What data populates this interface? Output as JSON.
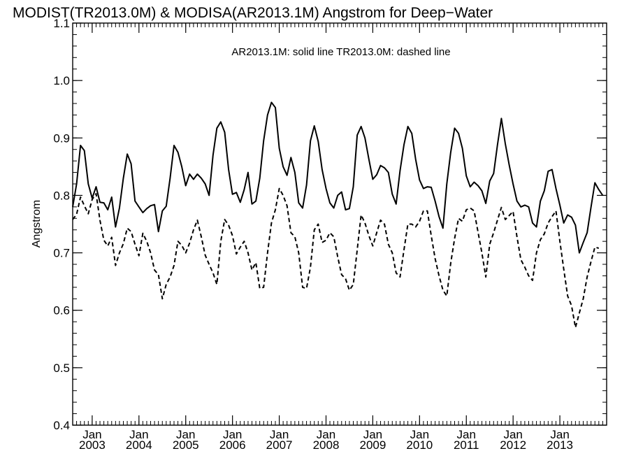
{
  "chart_data": {
    "type": "line",
    "title": "MODIST(TR2013.0M) & MODISA(AR2013.1M)  Angstrom for Deep−Water",
    "annotation": "AR2013.1M: solid line   TR2013.0M: dashed line",
    "xlabel": "",
    "ylabel": "Angstrom",
    "ylim": [
      0.4,
      1.1
    ],
    "xlim": [
      2002.583,
      2014.0
    ],
    "yticks": [
      0.4,
      0.5,
      0.6,
      0.7,
      0.8,
      0.9,
      1.0,
      1.1
    ],
    "ytick_labels": [
      "0.4",
      "0.5",
      "0.6",
      "0.7",
      "0.8",
      "0.9",
      "1.0",
      "1.1"
    ],
    "xticks": [
      {
        "month": "Jan",
        "year": "2003",
        "x": 2003.0
      },
      {
        "month": "Jan",
        "year": "2004",
        "x": 2004.0
      },
      {
        "month": "Jan",
        "year": "2005",
        "x": 2005.0
      },
      {
        "month": "Jan",
        "year": "2006",
        "x": 2006.0
      },
      {
        "month": "Jan",
        "year": "2007",
        "x": 2007.0
      },
      {
        "month": "Jan",
        "year": "2008",
        "x": 2008.0
      },
      {
        "month": "Jan",
        "year": "2009",
        "x": 2009.0
      },
      {
        "month": "Jan",
        "year": "2010",
        "x": 2010.0
      },
      {
        "month": "Jan",
        "year": "2011",
        "x": 2011.0
      },
      {
        "month": "Jan",
        "year": "2012",
        "x": 2012.0
      },
      {
        "month": "Jan",
        "year": "2013",
        "x": 2013.0
      }
    ],
    "start": "2002-08",
    "step": "1 month",
    "grid": false,
    "series": [
      {
        "style": "solid",
        "values": [
          0.78,
          0.82,
          0.887,
          0.878,
          0.82,
          0.795,
          0.815,
          0.788,
          0.787,
          0.775,
          0.797,
          0.745,
          0.778,
          0.83,
          0.872,
          0.855,
          0.79,
          0.78,
          0.77,
          0.777,
          0.782,
          0.784,
          0.737,
          0.773,
          0.781,
          0.83,
          0.887,
          0.875,
          0.85,
          0.817,
          0.837,
          0.828,
          0.837,
          0.83,
          0.82,
          0.8,
          0.87,
          0.917,
          0.928,
          0.91,
          0.845,
          0.802,
          0.805,
          0.788,
          0.81,
          0.84,
          0.785,
          0.79,
          0.83,
          0.895,
          0.94,
          0.962,
          0.953,
          0.882,
          0.85,
          0.835,
          0.866,
          0.84,
          0.787,
          0.778,
          0.818,
          0.895,
          0.921,
          0.894,
          0.845,
          0.812,
          0.787,
          0.778,
          0.8,
          0.806,
          0.775,
          0.777,
          0.815,
          0.905,
          0.92,
          0.9,
          0.863,
          0.828,
          0.836,
          0.852,
          0.848,
          0.84,
          0.802,
          0.785,
          0.843,
          0.888,
          0.92,
          0.908,
          0.863,
          0.827,
          0.812,
          0.815,
          0.814,
          0.79,
          0.763,
          0.743,
          0.82,
          0.875,
          0.917,
          0.908,
          0.882,
          0.834,
          0.815,
          0.823,
          0.817,
          0.808,
          0.786,
          0.825,
          0.838,
          0.888,
          0.934,
          0.89,
          0.853,
          0.82,
          0.79,
          0.78,
          0.783,
          0.78,
          0.752,
          0.745,
          0.79,
          0.808,
          0.842,
          0.845,
          0.812,
          0.783,
          0.752,
          0.766,
          0.762,
          0.748,
          0.7,
          0.718,
          0.735,
          0.78,
          0.822,
          0.81,
          0.8
        ]
      },
      {
        "style": "dashed",
        "values": [
          0.758,
          0.767,
          0.797,
          0.782,
          0.768,
          0.793,
          0.803,
          0.757,
          0.722,
          0.712,
          0.727,
          0.678,
          0.7,
          0.716,
          0.743,
          0.737,
          0.715,
          0.695,
          0.734,
          0.72,
          0.7,
          0.67,
          0.662,
          0.62,
          0.645,
          0.658,
          0.678,
          0.72,
          0.713,
          0.7,
          0.717,
          0.74,
          0.757,
          0.728,
          0.696,
          0.68,
          0.665,
          0.645,
          0.72,
          0.758,
          0.748,
          0.73,
          0.698,
          0.71,
          0.72,
          0.7,
          0.67,
          0.683,
          0.638,
          0.64,
          0.7,
          0.752,
          0.775,
          0.812,
          0.8,
          0.782,
          0.735,
          0.728,
          0.7,
          0.64,
          0.638,
          0.675,
          0.74,
          0.75,
          0.718,
          0.722,
          0.735,
          0.728,
          0.693,
          0.662,
          0.655,
          0.635,
          0.645,
          0.705,
          0.766,
          0.752,
          0.73,
          0.712,
          0.735,
          0.757,
          0.75,
          0.715,
          0.7,
          0.665,
          0.658,
          0.705,
          0.75,
          0.75,
          0.745,
          0.755,
          0.773,
          0.773,
          0.73,
          0.69,
          0.66,
          0.635,
          0.625,
          0.682,
          0.725,
          0.76,
          0.755,
          0.775,
          0.778,
          0.773,
          0.736,
          0.7,
          0.658,
          0.715,
          0.735,
          0.757,
          0.779,
          0.758,
          0.765,
          0.772,
          0.728,
          0.688,
          0.675,
          0.66,
          0.652,
          0.7,
          0.723,
          0.733,
          0.752,
          0.763,
          0.773,
          0.72,
          0.672,
          0.625,
          0.608,
          0.57,
          0.595,
          0.62,
          0.658,
          0.685,
          0.71,
          0.708
        ]
      }
    ]
  }
}
